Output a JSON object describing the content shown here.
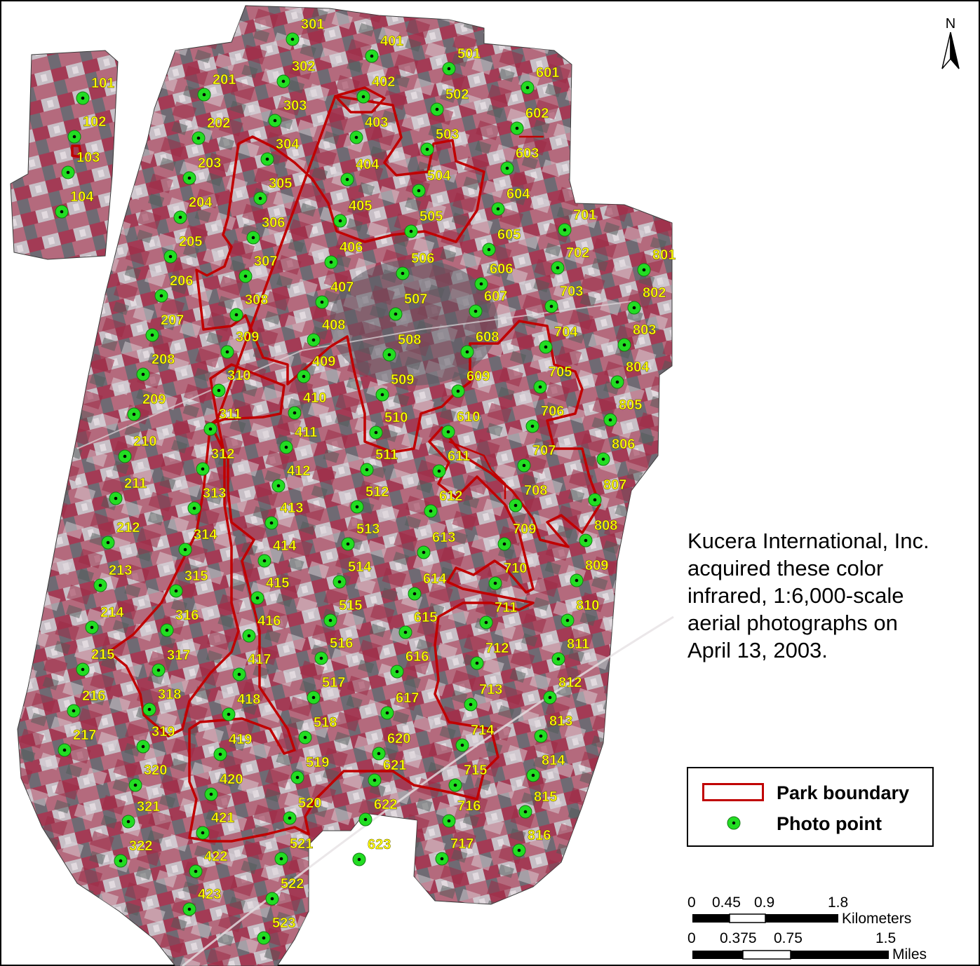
{
  "credit": {
    "line1": "Kucera International, Inc.",
    "line2": "acquired these color",
    "line3": "infrared, 1:6,000-scale",
    "line4": "aerial photographs on",
    "line5": "April 13, 2003."
  },
  "legend": {
    "boundary_label": "Park boundary",
    "point_label": "Photo point"
  },
  "north_label": "N",
  "scale": {
    "km_ticks": [
      "0",
      "0.45",
      "0.9",
      "1.8"
    ],
    "km_unit": "Kilometers",
    "mi_ticks": [
      "0",
      "0.375",
      "0.75",
      "1.5"
    ],
    "mi_unit": "Miles"
  },
  "colors": {
    "boundary": "#c00000",
    "photo_point": "#22dd22",
    "point_label": "#ffff00",
    "imagery_base": "#8a7a86",
    "imagery_red": "#a3314a"
  },
  "photo_points": [
    "101",
    "102",
    "103",
    "104",
    "201",
    "202",
    "203",
    "204",
    "205",
    "206",
    "207",
    "208",
    "209",
    "210",
    "211",
    "212",
    "213",
    "214",
    "215",
    "216",
    "217",
    "301",
    "302",
    "303",
    "304",
    "305",
    "306",
    "307",
    "308",
    "309",
    "310",
    "311",
    "312",
    "313",
    "314",
    "315",
    "316",
    "317",
    "318",
    "319",
    "320",
    "321",
    "322",
    "401",
    "402",
    "403",
    "404",
    "405",
    "406",
    "407",
    "408",
    "409",
    "410",
    "411",
    "412",
    "413",
    "414",
    "415",
    "416",
    "417",
    "418",
    "419",
    "420",
    "421",
    "422",
    "423",
    "501",
    "502",
    "503",
    "504",
    "505",
    "506",
    "507",
    "508",
    "509",
    "510",
    "511",
    "512",
    "513",
    "514",
    "515",
    "516",
    "517",
    "518",
    "519",
    "520",
    "521",
    "522",
    "523",
    "601",
    "602",
    "603",
    "604",
    "605",
    "606",
    "607",
    "608",
    "609",
    "610",
    "611",
    "612",
    "613",
    "614",
    "615",
    "616",
    "617",
    "620",
    "621",
    "622",
    "623",
    "701",
    "702",
    "703",
    "704",
    "705",
    "706",
    "707",
    "708",
    "709",
    "710",
    "711",
    "712",
    "713",
    "714",
    "715",
    "716",
    "717",
    "801",
    "802",
    "803",
    "804",
    "805",
    "806",
    "807",
    "808",
    "809",
    "810",
    "811",
    "812",
    "813",
    "814",
    "815",
    "816"
  ]
}
